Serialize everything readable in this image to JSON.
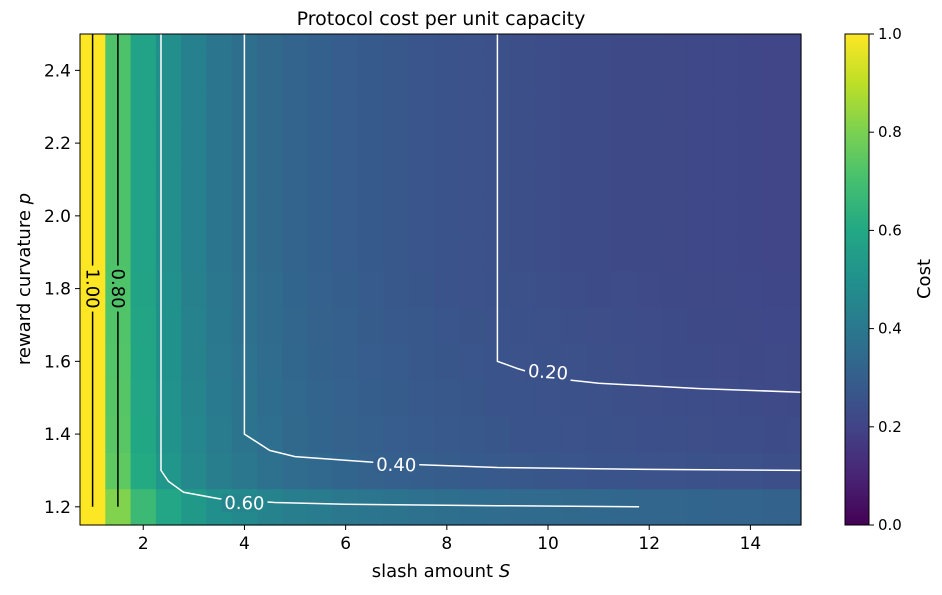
{
  "chart_data": {
    "type": "heatmap",
    "title": "Protocol cost per unit capacity",
    "xlabel": "slash amount ",
    "xlabel_var": "S",
    "ylabel": "reward curvature ",
    "ylabel_var": "p",
    "xlim": [
      0.75,
      15
    ],
    "ylim": [
      1.15,
      2.5
    ],
    "x_ticks": [
      2,
      4,
      6,
      8,
      10,
      12,
      14
    ],
    "x_tick_labels": [
      "2",
      "4",
      "6",
      "8",
      "10",
      "12",
      "14"
    ],
    "y_ticks": [
      1.2,
      1.4,
      1.6,
      1.8,
      2.0,
      2.2,
      2.4
    ],
    "y_tick_labels": [
      "1.2",
      "1.4",
      "1.6",
      "1.8",
      "2.0",
      "2.2",
      "2.4"
    ],
    "colormap": "viridis",
    "colorbar": {
      "label": "Cost",
      "range": [
        0,
        1
      ],
      "ticks": [
        0.0,
        0.2,
        0.4,
        0.6,
        0.8,
        1.0
      ],
      "tick_labels": [
        "0.0",
        "0.2",
        "0.4",
        "0.6",
        "0.8",
        "1.0"
      ]
    },
    "x_edges": [
      0.75,
      1.25,
      1.75,
      2.25,
      2.75,
      3.25,
      3.75,
      4.25,
      4.75,
      5.25,
      5.75,
      6.25,
      6.75,
      7.25,
      7.75,
      8.25,
      8.75,
      9.25,
      9.75,
      10.25,
      10.75,
      11.25,
      11.75,
      12.25,
      12.75,
      13.25,
      13.75,
      14.25,
      14.75,
      15.0
    ],
    "y_edges": [
      1.15,
      1.25,
      1.35,
      1.45,
      1.55,
      1.65,
      1.75,
      1.85,
      1.95,
      2.05,
      2.15,
      2.25,
      2.35,
      2.45,
      2.5
    ],
    "contours": [
      {
        "level": "1.00",
        "color": "#000000",
        "label_color": "#000000",
        "label_rotation": 90,
        "label_at": [
          1.0,
          1.8
        ],
        "points": [
          [
            1.0,
            1.2
          ],
          [
            1.0,
            2.5
          ]
        ]
      },
      {
        "level": "0.80",
        "color": "#000000",
        "label_color": "#000000",
        "label_rotation": 90,
        "label_at": [
          1.5,
          1.8
        ],
        "points": [
          [
            1.5,
            1.2
          ],
          [
            1.5,
            2.5
          ]
        ]
      },
      {
        "level": "0.60",
        "color": "#ffffff",
        "label_color": "#ffffff",
        "label_rotation": 1,
        "label_at": [
          4.0,
          1.21
        ],
        "points": [
          [
            11.8,
            1.2
          ],
          [
            9.0,
            1.203
          ],
          [
            6.0,
            1.207
          ],
          [
            4.6,
            1.212
          ],
          [
            3.5,
            1.222
          ],
          [
            2.8,
            1.24
          ],
          [
            2.5,
            1.27
          ],
          [
            2.35,
            1.3
          ],
          [
            2.35,
            2.5
          ]
        ]
      },
      {
        "level": "0.40",
        "color": "#ffffff",
        "label_color": "#ffffff",
        "label_rotation": 1,
        "label_at": [
          7.0,
          1.315
        ],
        "points": [
          [
            15.0,
            1.3
          ],
          [
            12.0,
            1.303
          ],
          [
            9.0,
            1.308
          ],
          [
            7.0,
            1.318
          ],
          [
            5.0,
            1.338
          ],
          [
            4.5,
            1.355
          ],
          [
            4.0,
            1.4
          ],
          [
            4.0,
            2.5
          ]
        ]
      },
      {
        "level": "0.20",
        "color": "#ffffff",
        "label_color": "#ffffff",
        "label_rotation": 4,
        "label_at": [
          10.0,
          1.57
        ],
        "points": [
          [
            15.0,
            1.515
          ],
          [
            13.0,
            1.525
          ],
          [
            11.0,
            1.54
          ],
          [
            10.0,
            1.555
          ],
          [
            9.4,
            1.58
          ],
          [
            9.0,
            1.6
          ],
          [
            9.0,
            2.5
          ]
        ]
      }
    ]
  }
}
